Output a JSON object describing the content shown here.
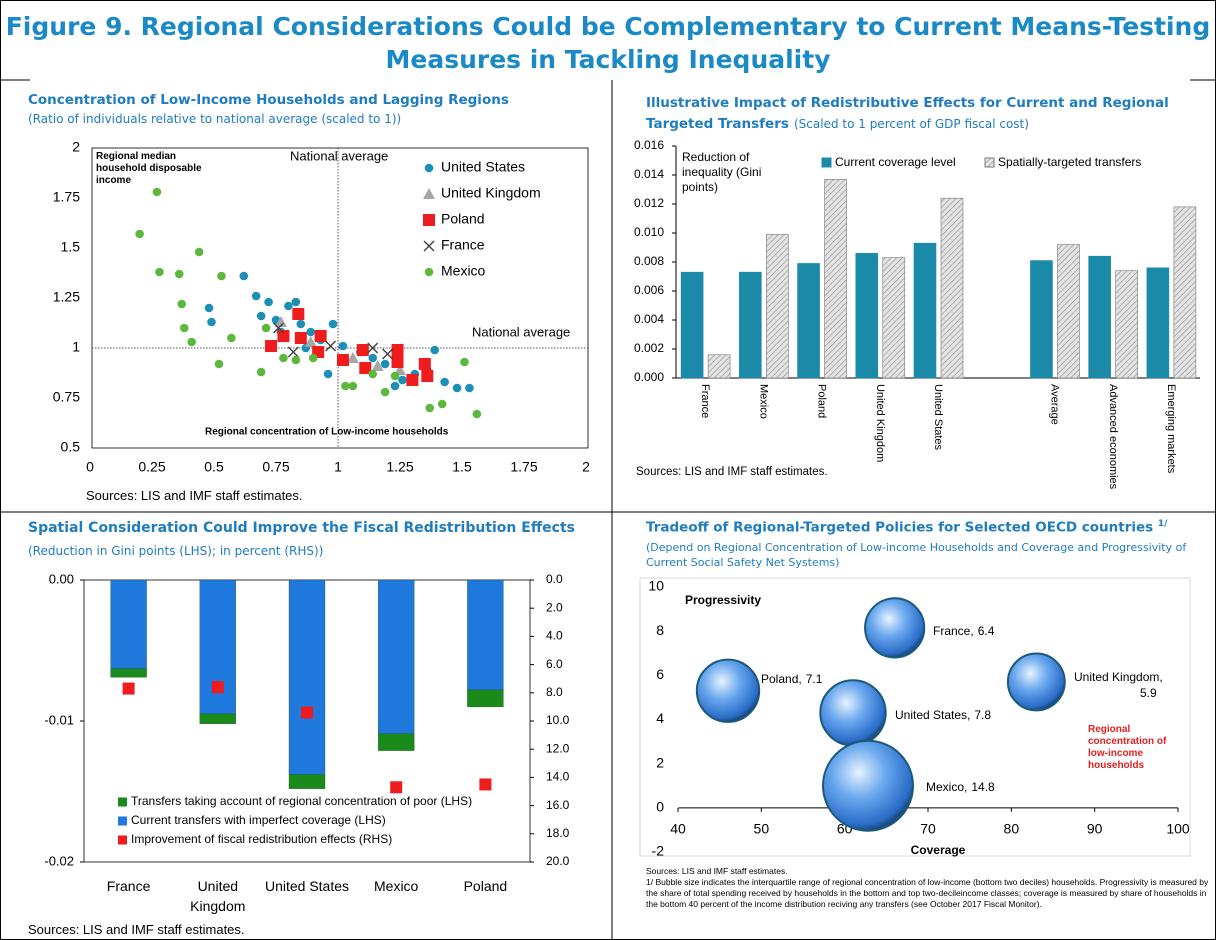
{
  "title": "Figure 9. Regional Considerations Could be Complementary to Current Means-Testing Measures in Tackling Inequality",
  "chart_data": [
    {
      "type": "scatter",
      "title": "Concentration of Low-Income Households and Lagging Regions",
      "subtitle": "(Ratio of individuals relative to national average (scaled to 1))",
      "xlim": [
        0,
        2
      ],
      "xticks": [
        0,
        0.25,
        0.5,
        0.75,
        1,
        1.25,
        1.5,
        1.75,
        2
      ],
      "ylim": [
        0.5,
        2
      ],
      "yticks": [
        0.5,
        0.75,
        1,
        1.25,
        1.5,
        1.75,
        2
      ],
      "reference_lines": {
        "x": 1,
        "y": 1
      },
      "annotations": [
        "Regional median household disposable income",
        "National average",
        "National average",
        "Regional concentration of Low-income households"
      ],
      "legend": "upper right",
      "series": [
        {
          "name": "United States",
          "color": "#1b8fb5",
          "marker": "circle",
          "x": [
            0.48,
            0.62,
            0.67,
            0.72,
            0.8,
            0.83,
            0.69,
            0.75,
            0.85,
            0.89,
            0.93,
            0.98,
            1.02,
            0.96,
            1.09,
            1.14,
            1.19,
            1.23,
            1.26,
            1.31,
            1.36,
            1.39,
            1.43,
            1.48,
            1.53,
            0.49,
            0.77,
            0.87
          ],
          "values": [
            1.2,
            1.36,
            1.26,
            1.23,
            1.21,
            1.23,
            1.16,
            1.14,
            1.12,
            1.08,
            1.04,
            1.12,
            1.01,
            0.87,
            0.98,
            0.95,
            0.92,
            0.81,
            0.84,
            0.87,
            0.89,
            0.99,
            0.83,
            0.8,
            0.8,
            1.13,
            1.08,
            1.0
          ]
        },
        {
          "name": "United Kingdom",
          "color": "#a6a6a6",
          "marker": "triangle",
          "x": [
            0.77,
            0.89,
            1.06,
            1.16,
            1.25
          ],
          "values": [
            1.13,
            1.03,
            0.95,
            0.91,
            0.89
          ]
        },
        {
          "name": "Poland",
          "color": "#ee1c1c",
          "marker": "square",
          "x": [
            0.73,
            0.78,
            0.84,
            0.85,
            0.93,
            0.92,
            1.02,
            1.1,
            1.11,
            1.24,
            1.24,
            1.3,
            1.35,
            1.36
          ],
          "values": [
            1.01,
            1.06,
            1.17,
            1.05,
            1.06,
            0.98,
            0.94,
            0.99,
            0.9,
            0.99,
            0.93,
            0.84,
            0.92,
            0.86
          ]
        },
        {
          "name": "France",
          "color": "#404040",
          "marker": "cross",
          "x": [
            0.76,
            0.82,
            0.97,
            1.14,
            1.2
          ],
          "values": [
            1.1,
            0.98,
            1.01,
            1.0,
            0.97
          ]
        },
        {
          "name": "Mexico",
          "color": "#5cb83c",
          "marker": "circle",
          "x": [
            0.2,
            0.27,
            0.28,
            0.36,
            0.37,
            0.38,
            0.41,
            0.44,
            0.53,
            0.52,
            0.57,
            0.69,
            0.71,
            0.78,
            0.83,
            0.9,
            1.03,
            1.06,
            1.14,
            1.19,
            1.37,
            1.42,
            1.51,
            1.56,
            1.23
          ],
          "values": [
            1.57,
            1.78,
            1.38,
            1.37,
            1.22,
            1.1,
            1.03,
            1.48,
            1.36,
            0.92,
            1.05,
            0.88,
            1.1,
            0.95,
            0.94,
            0.95,
            0.81,
            0.81,
            0.87,
            0.78,
            0.7,
            0.72,
            0.93,
            0.67,
            0.86
          ]
        }
      ],
      "source": "Sources: LIS and IMF staff estimates."
    },
    {
      "type": "bar",
      "title": "Illustrative Impact of Redistributive Effects for Current and Regional Targeted Transfers",
      "subtitle": "(Scaled to 1 percent of GDP fiscal cost)",
      "annotations": [
        "Reduction of inequality (Gini points)"
      ],
      "categories": [
        "France",
        "Mexico",
        "Poland",
        "United Kingdom",
        "United States",
        null,
        "Average",
        "Advanced economies",
        "Emerging markets"
      ],
      "ylim": [
        0,
        0.016
      ],
      "yticks": [
        {
          "value": 0,
          "label": "0.000"
        },
        {
          "value": 0.002,
          "label": "0.002"
        },
        {
          "value": 0.004,
          "label": "0.004"
        },
        {
          "value": 0.006,
          "label": "0.006"
        },
        {
          "value": 0.008,
          "label": "0.008"
        },
        {
          "value": 0.01,
          "label": "0.010"
        },
        {
          "value": 0.012,
          "label": "0.012"
        },
        {
          "value": 0.014,
          "label": "0.014"
        },
        {
          "value": 0.016,
          "label": "0.016"
        }
      ],
      "legend": "top",
      "series": [
        {
          "name": "Current coverage level",
          "color": "#1a8aa8",
          "values": [
            0.0073,
            0.0073,
            0.0079,
            0.0086,
            0.0093,
            null,
            0.0081,
            0.0084,
            0.0076
          ]
        },
        {
          "name": "Spatially-targeted transfers",
          "color": "#d0d0d0",
          "pattern": "hatch",
          "values": [
            0.0016,
            0.0099,
            0.0137,
            0.0083,
            0.0124,
            null,
            0.0092,
            0.0074,
            0.0118
          ]
        }
      ],
      "source": "Sources: LIS and IMF staff estimates."
    },
    {
      "type": "stacked_bar",
      "title": "Spatial Consideration Could Improve the Fiscal Redistribution Effects",
      "subtitle": "(Reduction in Gini points (LHS); in percent (RHS))",
      "categories": [
        "France",
        "United Kingdom",
        "United States",
        "Mexico",
        "Poland"
      ],
      "ylim": [
        -0.02,
        0
      ],
      "yticks": [
        {
          "value": 0,
          "label": "0.00"
        },
        {
          "value": -0.01,
          "label": "-0.01"
        },
        {
          "value": -0.02,
          "label": "-0.02"
        }
      ],
      "y2lim": [
        20,
        0
      ],
      "y2ticks": [
        {
          "value": 0,
          "label": "0.0"
        },
        {
          "value": 2,
          "label": "2.0"
        },
        {
          "value": 4,
          "label": "4.0"
        },
        {
          "value": 6,
          "label": "6.0"
        },
        {
          "value": 8,
          "label": "8.0"
        },
        {
          "value": 10,
          "label": "10.0"
        },
        {
          "value": 12,
          "label": "12.0"
        },
        {
          "value": 14,
          "label": "14.0"
        },
        {
          "value": 16,
          "label": "16.0"
        },
        {
          "value": 18,
          "label": "18.0"
        },
        {
          "value": 20,
          "label": "20.0"
        }
      ],
      "legend": "lower left",
      "series": [
        {
          "name": "Transfers taking account of regional concentration of poor (LHS)",
          "color": "#1a8a1a",
          "values": [
            -0.0006,
            -0.0007,
            -0.001,
            -0.0012,
            -0.0012
          ]
        },
        {
          "name": "Current transfers with imperfect coverage (LHS)",
          "color": "#1f78dc",
          "values": [
            -0.0063,
            -0.0095,
            -0.0138,
            -0.0109,
            -0.0078
          ]
        },
        {
          "name": "Improvement of fiscal redistribution effects (RHS)",
          "color": "#ee1c1c",
          "axis": "y2",
          "marker": "square",
          "values": [
            7.7,
            7.6,
            9.4,
            14.7,
            14.5
          ]
        }
      ],
      "source": "Sources: LIS and IMF staff estimates."
    },
    {
      "type": "bubble",
      "title": "Tradeoff of Regional-Targeted Policies for Selected OECD countries",
      "title_note": "1/",
      "subtitle": "(Depend on Regional Concentration of Low-income Households and Coverage and Progressivity of Current Social Safety Net Systems)",
      "xlabel": "Coverage",
      "ylabel": "Progressivity",
      "xlim": [
        40,
        100
      ],
      "xticks": [
        40,
        50,
        60,
        70,
        80,
        90,
        100
      ],
      "ylim": [
        -2,
        10
      ],
      "yticks": [
        -2,
        0,
        2,
        4,
        6,
        8,
        10
      ],
      "labels": [
        "France,",
        "Poland,",
        "United States,",
        "United Kingdom,",
        "Mexico,"
      ],
      "x": [
        66,
        46,
        61,
        83,
        62.8
      ],
      "values": [
        8.15,
        5.3,
        4.3,
        5.7,
        1.0
      ],
      "sizes": [
        6.4,
        7.1,
        7.8,
        5.9,
        14.8
      ],
      "color": "#3a86d8",
      "annotations": [
        "Regional concentration of low-income households"
      ],
      "source": "Sources: LIS and IMF staff estimates.",
      "footnote": "1/ Bubble size indicates the interquartile range of regional concentration of low-income (bottom two deciles) households. Progressivity is measured by the share of total spending received by households in the bottom and top two-decileincome classes; coverage is measured by share of households in the bottom 40 percent of the income distribution reciving any transfers (see October 2017 Fiscal Monitor)."
    }
  ]
}
